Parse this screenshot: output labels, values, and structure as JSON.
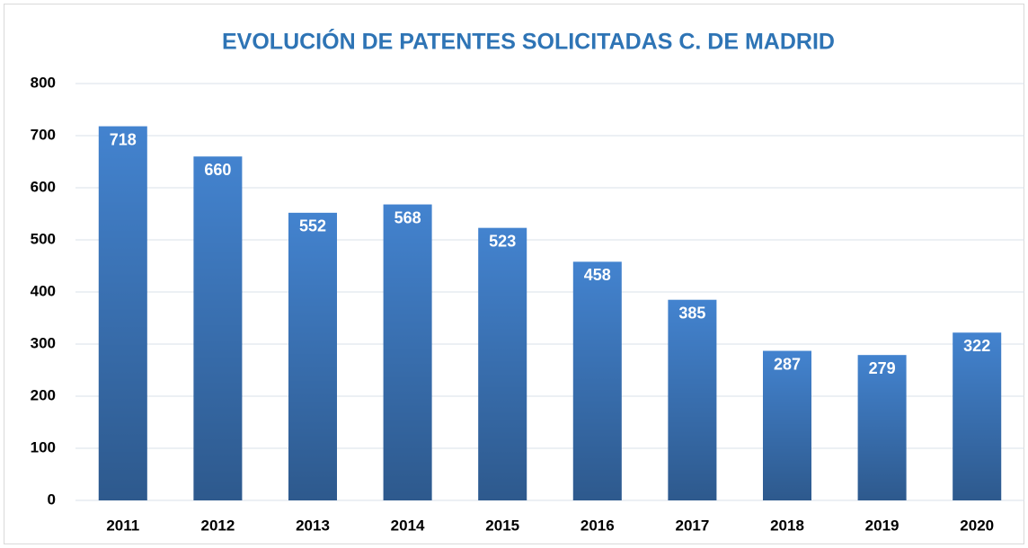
{
  "chart_data": {
    "type": "bar",
    "title": "EVOLUCIÓN DE PATENTES SOLICITADAS C. DE MADRID",
    "categories": [
      "2011",
      "2012",
      "2013",
      "2014",
      "2015",
      "2016",
      "2017",
      "2018",
      "2019",
      "2020"
    ],
    "values": [
      718,
      660,
      552,
      568,
      523,
      458,
      385,
      287,
      279,
      322
    ],
    "color": "#4383cf",
    "ylim": [
      0,
      800
    ],
    "yticks": [
      0,
      100,
      200,
      300,
      400,
      500,
      600,
      700,
      800
    ],
    "grid": true
  }
}
